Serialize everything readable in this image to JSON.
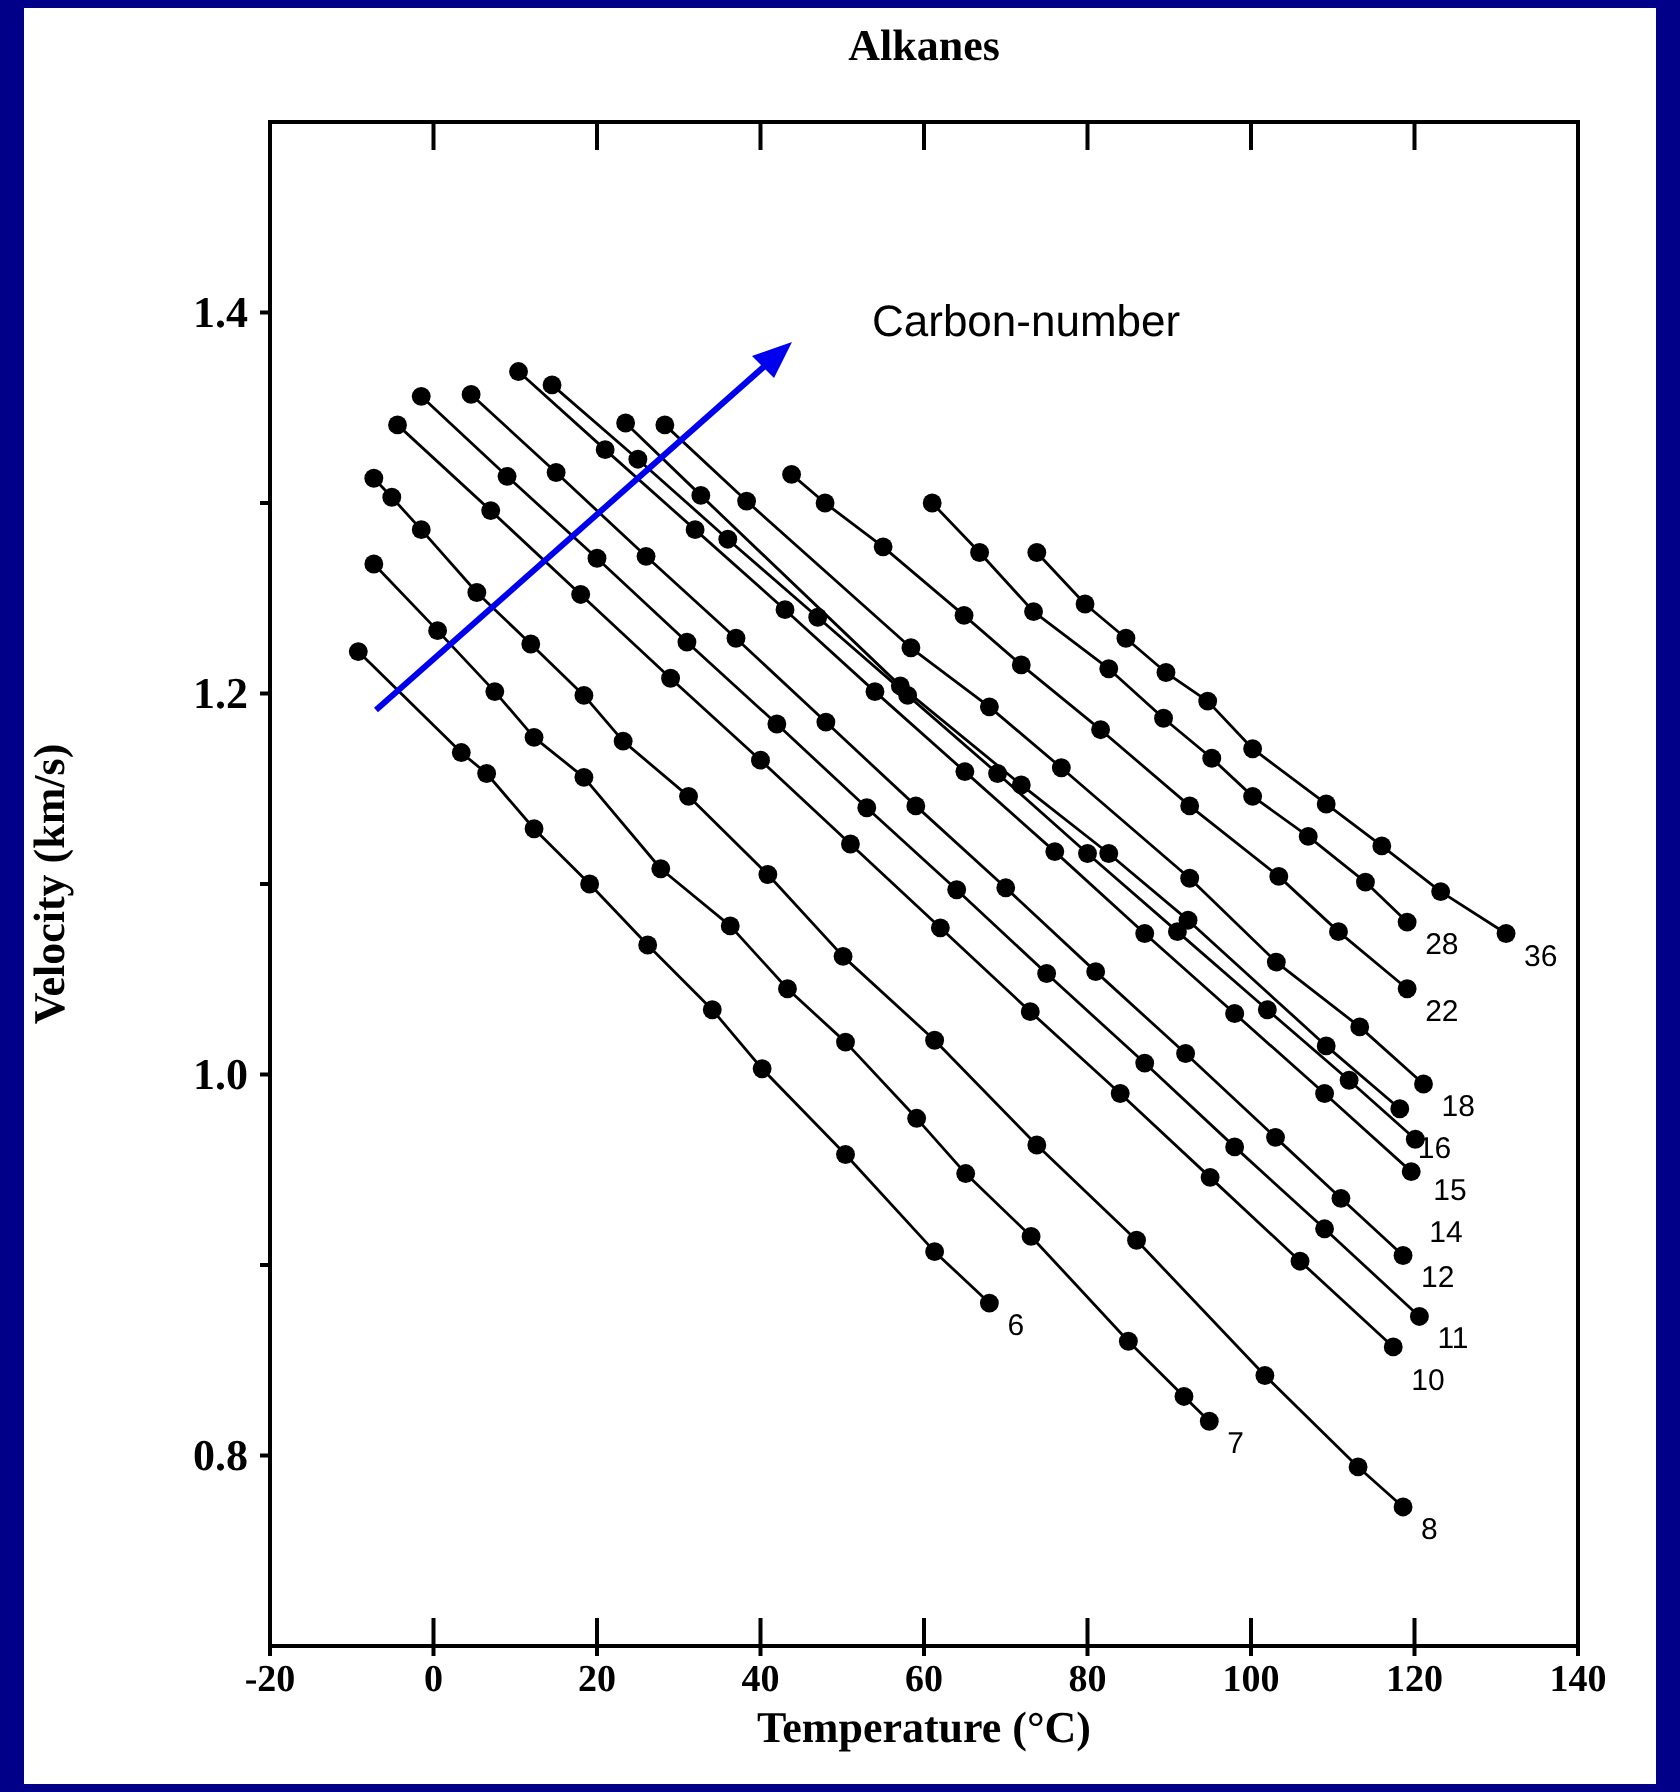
{
  "chart_data": {
    "type": "line",
    "title": "Alkanes",
    "xlabel": "Temperature (°C)",
    "ylabel": "Velocity (km/s)",
    "annotations": [
      "Carbon-number"
    ],
    "marker": "circle",
    "xlim": [
      -20,
      140
    ],
    "xticks": [
      -20,
      0,
      20,
      40,
      60,
      80,
      100,
      120,
      140
    ],
    "ylim": [
      0.7,
      1.5
    ],
    "yticks": [
      0.8,
      {
        "value": 0.9,
        "label": null
      },
      {
        "value": 1.0,
        "label": "1.0"
      },
      {
        "value": 1.1,
        "label": null
      },
      1.2,
      {
        "value": 1.3,
        "label": null
      },
      1.4
    ],
    "series": [
      {
        "name": "6",
        "color": "#000000",
        "x": [
          -9.2,
          3.4,
          6.5,
          12.3,
          19.1,
          26.2,
          34.1,
          40.2,
          50.4,
          61.3,
          68.0
        ],
        "values": [
          1.222,
          1.169,
          1.158,
          1.129,
          1.1,
          1.068,
          1.034,
          1.003,
          0.958,
          0.907,
          0.88
        ]
      },
      {
        "name": "7",
        "color": "#000000",
        "x": [
          -7.3,
          0.5,
          7.5,
          12.3,
          18.4,
          27.8,
          36.3,
          43.3,
          50.4,
          59.1,
          65.1,
          73.1,
          85.0,
          91.8,
          94.9
        ],
        "values": [
          1.268,
          1.233,
          1.201,
          1.177,
          1.156,
          1.108,
          1.078,
          1.045,
          1.017,
          0.977,
          0.948,
          0.915,
          0.86,
          0.831,
          0.818
        ]
      },
      {
        "name": "8",
        "color": "#000000",
        "x": [
          -7.3,
          -5.1,
          -1.5,
          5.3,
          11.9,
          18.4,
          23.2,
          31.2,
          40.9,
          50.1,
          61.3,
          73.8,
          86.0,
          101.7,
          113.1,
          118.6
        ],
        "values": [
          1.313,
          1.303,
          1.286,
          1.253,
          1.226,
          1.199,
          1.175,
          1.146,
          1.105,
          1.062,
          1.018,
          0.963,
          0.913,
          0.842,
          0.794,
          0.773
        ]
      },
      {
        "name": "10",
        "color": "#000000",
        "x": [
          -4.4,
          7,
          18,
          29,
          40,
          51,
          62,
          73,
          84,
          95,
          106,
          117.4
        ],
        "values": [
          1.341,
          1.296,
          1.252,
          1.208,
          1.165,
          1.121,
          1.077,
          1.033,
          0.99,
          0.946,
          0.902,
          0.857
        ]
      },
      {
        "name": "11",
        "color": "#000000",
        "x": [
          -1.5,
          9,
          20,
          31,
          42,
          53,
          64,
          75,
          87,
          98,
          109,
          120.6
        ],
        "values": [
          1.356,
          1.314,
          1.271,
          1.227,
          1.184,
          1.14,
          1.097,
          1.053,
          1.006,
          0.962,
          0.919,
          0.873
        ]
      },
      {
        "name": "12",
        "color": "#000000",
        "x": [
          4.6,
          15,
          26,
          37,
          48,
          59,
          70,
          81,
          92,
          103,
          111,
          118.6
        ],
        "values": [
          1.357,
          1.316,
          1.272,
          1.229,
          1.185,
          1.141,
          1.098,
          1.054,
          1.011,
          0.967,
          0.935,
          0.905
        ]
      },
      {
        "name": "14",
        "color": "#000000",
        "x": [
          10.4,
          21,
          32,
          43,
          54,
          65,
          76,
          87,
          98,
          109,
          119.6
        ],
        "values": [
          1.369,
          1.328,
          1.286,
          1.244,
          1.201,
          1.159,
          1.117,
          1.074,
          1.032,
          0.99,
          0.949
        ]
      },
      {
        "name": "15",
        "color": "#000000",
        "x": [
          14.5,
          25,
          36,
          47,
          58,
          69,
          80,
          91,
          102,
          112,
          120.1
        ],
        "values": [
          1.362,
          1.323,
          1.281,
          1.24,
          1.199,
          1.158,
          1.116,
          1.075,
          1.034,
          0.997,
          0.966
        ]
      },
      {
        "name": "16",
        "color": "#000000",
        "x": [
          23.5,
          32.7,
          57.1,
          71.9,
          82.6,
          92.3,
          109.2,
          118.2
        ],
        "values": [
          1.342,
          1.304,
          1.204,
          1.152,
          1.116,
          1.081,
          1.015,
          0.982
        ]
      },
      {
        "name": "18",
        "color": "#000000",
        "x": [
          28.3,
          38.3,
          58.4,
          68.0,
          76.8,
          92.5,
          103.1,
          113.3,
          121.1
        ],
        "values": [
          1.341,
          1.301,
          1.224,
          1.193,
          1.161,
          1.103,
          1.059,
          1.025,
          0.995
        ]
      },
      {
        "name": "22",
        "color": "#000000",
        "x": [
          43.8,
          47.9,
          55.0,
          64.9,
          71.9,
          81.6,
          92.5,
          103.4,
          110.7,
          119.1
        ],
        "values": [
          1.315,
          1.3,
          1.277,
          1.241,
          1.215,
          1.181,
          1.141,
          1.104,
          1.075,
          1.045
        ]
      },
      {
        "name": "28",
        "color": "#000000",
        "x": [
          61.0,
          66.8,
          73.4,
          82.6,
          89.3,
          95.2,
          100.2,
          107.0,
          114.0,
          119.1
        ],
        "values": [
          1.3,
          1.274,
          1.243,
          1.213,
          1.187,
          1.166,
          1.146,
          1.125,
          1.101,
          1.08
        ]
      },
      {
        "name": "36",
        "color": "#000000",
        "x": [
          73.8,
          79.7,
          84.7,
          89.6,
          94.7,
          100.2,
          109.2,
          116.0,
          123.2,
          131.2
        ],
        "values": [
          1.274,
          1.247,
          1.229,
          1.211,
          1.196,
          1.171,
          1.142,
          1.12,
          1.096,
          1.074
        ]
      }
    ]
  }
}
